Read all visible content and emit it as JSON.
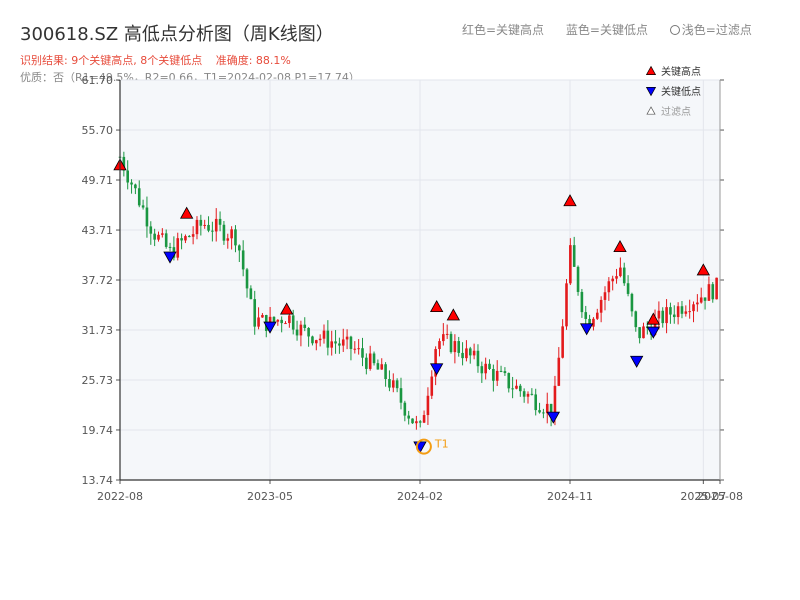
{
  "header": {
    "title": "300618.SZ 高低点分析图（周K线图）",
    "status": {
      "result": "识别结果: 9个关键高点, 8个关键低点",
      "accuracy": "准确度: 88.1%"
    },
    "quality": "优质：否（R1=49.5%，R2=0.66，T1=2024-02-08,P1=17.74）",
    "legend_top": {
      "red": "红色=关键高点",
      "blue": "蓝色=关键低点",
      "pale": "浅色=过滤点"
    }
  },
  "colors": {
    "up": "#e31a1c",
    "down": "#1a9641",
    "high_marker": "#ff0000",
    "low_marker": "#0000ff",
    "annotation": "#f39c12"
  },
  "chart_data": {
    "type": "candlestick",
    "title": "300618.SZ 高低点分析图（周K线图）",
    "x_ticks": [
      "2022-08",
      "2023-05",
      "2024-02",
      "2024-11",
      "2025-07",
      "2025-08"
    ],
    "y_ticks": [
      13.74,
      19.74,
      25.73,
      31.73,
      37.72,
      43.71,
      49.71,
      55.7,
      61.7
    ],
    "ylim": [
      13.74,
      61.7
    ],
    "xlim": [
      "2022-08",
      "2025-08"
    ],
    "grid": true,
    "legend": {
      "position": "top-right",
      "entries": [
        "关键高点",
        "关键低点",
        "过滤点"
      ]
    },
    "key_highs": [
      {
        "date": "2022-08",
        "price": 51.5
      },
      {
        "date": "2022-12",
        "price": 45.7
      },
      {
        "date": "2023-06",
        "price": 34.2
      },
      {
        "date": "2024-03",
        "price": 34.5
      },
      {
        "date": "2024-04",
        "price": 33.5
      },
      {
        "date": "2024-11",
        "price": 47.2
      },
      {
        "date": "2025-02",
        "price": 41.7
      },
      {
        "date": "2025-04",
        "price": 33.0
      },
      {
        "date": "2025-07",
        "price": 38.9
      }
    ],
    "key_lows": [
      {
        "date": "2022-11",
        "price": 40.5
      },
      {
        "date": "2023-05",
        "price": 32.1
      },
      {
        "date": "2024-02",
        "price": 17.74
      },
      {
        "date": "2024-03",
        "price": 27.1
      },
      {
        "date": "2024-10",
        "price": 21.3
      },
      {
        "date": "2024-12",
        "price": 31.9
      },
      {
        "date": "2025-03",
        "price": 28.0
      },
      {
        "date": "2025-04",
        "price": 31.5
      }
    ],
    "annotations": [
      {
        "label": "T1",
        "date": "2024-02-08",
        "price": 17.74
      }
    ],
    "ohlc_anchors": [
      {
        "date": "2022-08",
        "close": 52.5
      },
      {
        "date": "2022-10",
        "close": 43.5
      },
      {
        "date": "2022-11",
        "close": 41.0
      },
      {
        "date": "2023-01",
        "close": 44.5
      },
      {
        "date": "2023-03",
        "close": 43.0
      },
      {
        "date": "2023-04",
        "close": 33.0
      },
      {
        "date": "2023-05",
        "close": 32.5
      },
      {
        "date": "2023-06",
        "close": 33.5
      },
      {
        "date": "2023-07",
        "close": 31.5
      },
      {
        "date": "2023-10",
        "close": 29.5
      },
      {
        "date": "2023-12",
        "close": 26.0
      },
      {
        "date": "2024-02",
        "close": 19.5
      },
      {
        "date": "2024-03",
        "close": 30.5
      },
      {
        "date": "2024-04",
        "close": 30.0
      },
      {
        "date": "2024-06",
        "close": 27.0
      },
      {
        "date": "2024-08",
        "close": 24.5
      },
      {
        "date": "2024-10",
        "close": 22.0
      },
      {
        "date": "2024-11",
        "close": 41.0
      },
      {
        "date": "2024-12",
        "close": 32.5
      },
      {
        "date": "2025-02",
        "close": 39.5
      },
      {
        "date": "2025-03",
        "close": 31.0
      },
      {
        "date": "2025-04",
        "close": 32.5
      },
      {
        "date": "2025-06",
        "close": 35.0
      },
      {
        "date": "2025-08",
        "close": 37.0
      }
    ]
  }
}
